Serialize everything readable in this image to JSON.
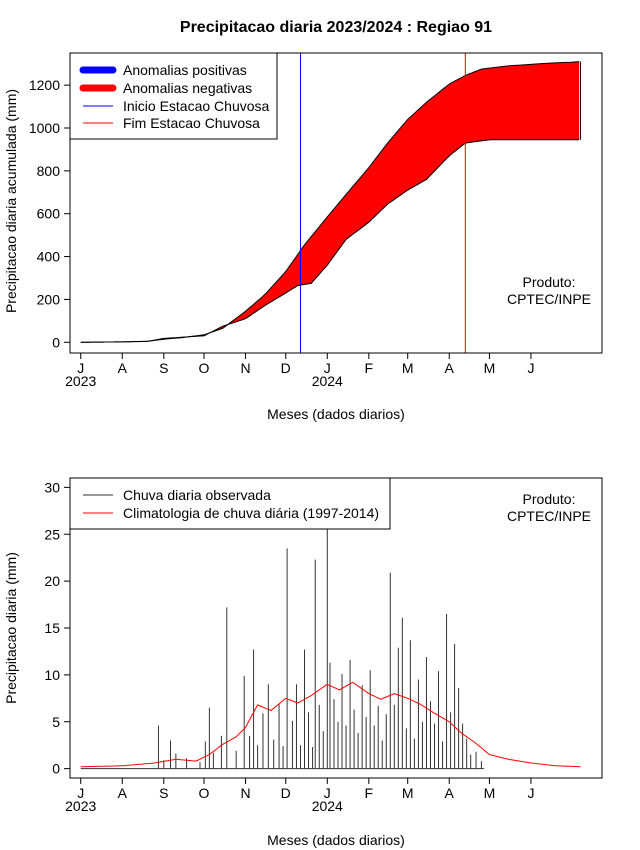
{
  "chart_data": [
    {
      "type": "area",
      "title": "Precipitacao diaria 2023/2024 : Regiao 91",
      "xlabel": "Meses (dados diarios)",
      "ylabel": "Precipitacao diaria acumulada (mm)",
      "ylim": [
        -50,
        1350
      ],
      "yticks": [
        0,
        200,
        400,
        600,
        800,
        1000,
        1200
      ],
      "xlim": [
        "2023-06-23",
        "2024-07-24"
      ],
      "xticks": [
        {
          "date": "2023-07-01",
          "label": "J"
        },
        {
          "date": "2023-08-01",
          "label": "A"
        },
        {
          "date": "2023-09-01",
          "label": "S"
        },
        {
          "date": "2023-10-01",
          "label": "O"
        },
        {
          "date": "2023-11-01",
          "label": "N"
        },
        {
          "date": "2023-12-01",
          "label": "D"
        },
        {
          "date": "2024-01-01",
          "label": "J"
        },
        {
          "date": "2024-02-01",
          "label": "F"
        },
        {
          "date": "2024-03-01",
          "label": "M"
        },
        {
          "date": "2024-04-01",
          "label": "A"
        },
        {
          "date": "2024-05-01",
          "label": "M"
        },
        {
          "date": "2024-06-01",
          "label": "J"
        }
      ],
      "year_labels": [
        {
          "date": "2023-07-01",
          "label": "2023"
        },
        {
          "date": "2024-01-01",
          "label": "2024"
        }
      ],
      "legend_position": "top-left",
      "legend": [
        {
          "label": "Anomalias positivas",
          "color": "#0000ff",
          "kind": "thick-line"
        },
        {
          "label": "Anomalias negativas",
          "color": "#ff0000",
          "kind": "thick-line"
        },
        {
          "label": "Inicio Estacao Chuvosa",
          "color": "#0000ff",
          "kind": "thin-line"
        },
        {
          "label": "Fim Estacao Chuvosa",
          "color": "#ff0000",
          "kind": "thin-line"
        }
      ],
      "annotation": [
        "Produto:",
        "CPTEC/INPE"
      ],
      "rainy_season_start": "2023-12-12",
      "rainy_season_end": "2024-04-13",
      "series": [
        {
          "name": "Climatologia",
          "values": [
            [
              "2023-07-01",
              0
            ],
            [
              "2023-08-01",
              2
            ],
            [
              "2023-08-20",
              5
            ],
            [
              "2023-09-01",
              14
            ],
            [
              "2023-09-15",
              22
            ],
            [
              "2023-10-01",
              35
            ],
            [
              "2023-10-15",
              65
            ],
            [
              "2023-11-01",
              145
            ],
            [
              "2023-11-15",
              220
            ],
            [
              "2023-12-01",
              330
            ],
            [
              "2023-12-15",
              455
            ],
            [
              "2024-01-01",
              585
            ],
            [
              "2024-01-15",
              690
            ],
            [
              "2024-02-01",
              815
            ],
            [
              "2024-02-15",
              930
            ],
            [
              "2024-03-01",
              1040
            ],
            [
              "2024-03-15",
              1120
            ],
            [
              "2024-04-01",
              1205
            ],
            [
              "2024-04-13",
              1245
            ],
            [
              "2024-04-25",
              1275
            ],
            [
              "2024-05-15",
              1290
            ],
            [
              "2024-06-01",
              1297
            ],
            [
              "2024-06-15",
              1303
            ],
            [
              "2024-07-01",
              1307
            ],
            [
              "2024-07-08",
              1310
            ]
          ]
        },
        {
          "name": "Observada",
          "values": [
            [
              "2023-07-01",
              0
            ],
            [
              "2023-08-01",
              2
            ],
            [
              "2023-08-20",
              4
            ],
            [
              "2023-09-01",
              18
            ],
            [
              "2023-09-15",
              24
            ],
            [
              "2023-10-01",
              30
            ],
            [
              "2023-10-15",
              75
            ],
            [
              "2023-11-01",
              110
            ],
            [
              "2023-11-15",
              170
            ],
            [
              "2023-12-01",
              230
            ],
            [
              "2023-12-10",
              265
            ],
            [
              "2023-12-20",
              275
            ],
            [
              "2024-01-01",
              360
            ],
            [
              "2024-01-15",
              480
            ],
            [
              "2024-02-01",
              560
            ],
            [
              "2024-02-15",
              645
            ],
            [
              "2024-03-01",
              710
            ],
            [
              "2024-03-15",
              760
            ],
            [
              "2024-04-01",
              870
            ],
            [
              "2024-04-13",
              930
            ],
            [
              "2024-05-01",
              945
            ],
            [
              "2024-06-01",
              945
            ],
            [
              "2024-07-08",
              945
            ]
          ]
        }
      ]
    },
    {
      "type": "bar",
      "xlabel": "Meses (dados diarios)",
      "ylabel": "Precipitacao diaria (mm)",
      "ylim": [
        -1,
        31
      ],
      "yticks": [
        0,
        5,
        10,
        15,
        20,
        25,
        30
      ],
      "xlim": [
        "2023-06-23",
        "2024-07-24"
      ],
      "xticks": [
        {
          "date": "2023-07-01",
          "label": "J"
        },
        {
          "date": "2023-08-01",
          "label": "A"
        },
        {
          "date": "2023-09-01",
          "label": "S"
        },
        {
          "date": "2023-10-01",
          "label": "O"
        },
        {
          "date": "2023-11-01",
          "label": "N"
        },
        {
          "date": "2023-12-01",
          "label": "D"
        },
        {
          "date": "2024-01-01",
          "label": "J"
        },
        {
          "date": "2024-02-01",
          "label": "F"
        },
        {
          "date": "2024-03-01",
          "label": "M"
        },
        {
          "date": "2024-04-01",
          "label": "A"
        },
        {
          "date": "2024-05-01",
          "label": "M"
        },
        {
          "date": "2024-06-01",
          "label": "J"
        }
      ],
      "year_labels": [
        {
          "date": "2023-07-01",
          "label": "2023"
        },
        {
          "date": "2024-01-01",
          "label": "2024"
        }
      ],
      "legend_position": "top-left",
      "legend": [
        {
          "label": "Chuva diaria observada",
          "color": "#333333"
        },
        {
          "label": "Climatologia de chuva diária (1997-2014)",
          "color": "#ff0000"
        }
      ],
      "annotation": [
        "Produto:",
        "CPTEC/INPE"
      ],
      "series": [
        {
          "name": "Chuva diaria observada",
          "start_date": "2023-07-01",
          "values": [
            0,
            0,
            0,
            0,
            0,
            0,
            0,
            0,
            0,
            0,
            0,
            0,
            0,
            0,
            0,
            0,
            0,
            0,
            0,
            0,
            0,
            0,
            0,
            0,
            0,
            0,
            0,
            0,
            0,
            0,
            0,
            0,
            0,
            0,
            0,
            0,
            0,
            0,
            0,
            0,
            0,
            0,
            0,
            0,
            0,
            0,
            0,
            0,
            0,
            0,
            0,
            0,
            0,
            0,
            0,
            0,
            0,
            0,
            0,
            0,
            0,
            0.3,
            0,
            0,
            0,
            0.1,
            0,
            0.6,
            0,
            0,
            0,
            0,
            0,
            0,
            0,
            0,
            0.2,
            0,
            0,
            0,
            0,
            0,
            0,
            0,
            0,
            0,
            0,
            0,
            0,
            0,
            0,
            0,
            0.5,
            0,
            0,
            0,
            0,
            0,
            0,
            0,
            0,
            0,
            0,
            0,
            0,
            0,
            0,
            0,
            0,
            0,
            0,
            0.4,
            0,
            0,
            0,
            1.3,
            0,
            0,
            0,
            0,
            0,
            0,
            0,
            0,
            0,
            0,
            0,
            0,
            0,
            0,
            0,
            0,
            0,
            0,
            0,
            0,
            0,
            0,
            0,
            0,
            0,
            0,
            0,
            0,
            0,
            0,
            0,
            0,
            0,
            0,
            0,
            0,
            0,
            0,
            0,
            0,
            0,
            0,
            0,
            0,
            0,
            0,
            0,
            0,
            0,
            0,
            0,
            0,
            0,
            0,
            0,
            0,
            0,
            0,
            0,
            0,
            0,
            0,
            0,
            0,
            0,
            0,
            0,
            0,
            0,
            0,
            0,
            0,
            0,
            0,
            0,
            0,
            0,
            0,
            0,
            0,
            0,
            0,
            0,
            0,
            0,
            0,
            0,
            0,
            0,
            0,
            0,
            0,
            0,
            0,
            0,
            0,
            0,
            0,
            0,
            0,
            0,
            0,
            0,
            0,
            0,
            0,
            0,
            0,
            0,
            0,
            0,
            0,
            0,
            0,
            0,
            0,
            0,
            0,
            0,
            0,
            0,
            0,
            0,
            0,
            0,
            0,
            0,
            0,
            0,
            0,
            0,
            0,
            0,
            0,
            0,
            0,
            0,
            0,
            0,
            0,
            0,
            0,
            0,
            0,
            0,
            0,
            0,
            0,
            0,
            0,
            0,
            0,
            0,
            0,
            0,
            0,
            0,
            0,
            0,
            0,
            0,
            0,
            0,
            0,
            0,
            0,
            0,
            0,
            0,
            0,
            0,
            0,
            0,
            0,
            0,
            0,
            0,
            0,
            0,
            0,
            0,
            0,
            0,
            0,
            0,
            0,
            0,
            0,
            0,
            0,
            0,
            0,
            0,
            0,
            0,
            0,
            0,
            0,
            0,
            0,
            0,
            0,
            0,
            0,
            0,
            0,
            0,
            0,
            0,
            0,
            0,
            0,
            0,
            0,
            0,
            0,
            0,
            0,
            0,
            0,
            0,
            0,
            0,
            0,
            0,
            0,
            0,
            0,
            0,
            0,
            0,
            0,
            0,
            0,
            0,
            0,
            0,
            0,
            0,
            0,
            0,
            0,
            0,
            0,
            0,
            0,
            0,
            0,
            0,
            0,
            0,
            0,
            0,
            0,
            0,
            0,
            0,
            0,
            0,
            0,
            0,
            0,
            0
          ]
        },
        {
          "name": "Climatologia de chuva diária (1997-2014)",
          "start_date": "2023-07-01",
          "values": []
        }
      ],
      "observed_peaks": [
        [
          "2023-08-28",
          4.6
        ],
        [
          "2023-09-01",
          0.9
        ],
        [
          "2023-09-06",
          3.0
        ],
        [
          "2023-09-10",
          1.6
        ],
        [
          "2023-09-18",
          1.1
        ],
        [
          "2023-09-28",
          0.7
        ],
        [
          "2023-10-02",
          2.9
        ],
        [
          "2023-10-05",
          6.5
        ],
        [
          "2023-10-08",
          1.7
        ],
        [
          "2023-10-14",
          3.5
        ],
        [
          "2023-10-18",
          17.2
        ],
        [
          "2023-10-25",
          1.9
        ],
        [
          "2023-10-31",
          9.9
        ],
        [
          "2023-11-04",
          3.5
        ],
        [
          "2023-11-07",
          12.7
        ],
        [
          "2023-11-10",
          2.5
        ],
        [
          "2023-11-14",
          5.9
        ],
        [
          "2023-11-18",
          9.0
        ],
        [
          "2023-11-22",
          3.1
        ],
        [
          "2023-11-26",
          6.9
        ],
        [
          "2023-11-29",
          2.4
        ],
        [
          "2023-12-02",
          23.5
        ],
        [
          "2023-12-06",
          5.1
        ],
        [
          "2023-12-09",
          9.0
        ],
        [
          "2023-12-12",
          2.5
        ],
        [
          "2023-12-15",
          12.7
        ],
        [
          "2023-12-18",
          6.0
        ],
        [
          "2023-12-21",
          2.3
        ],
        [
          "2023-12-23",
          22.3
        ],
        [
          "2023-12-26",
          6.8
        ],
        [
          "2023-12-29",
          4.0
        ],
        [
          "2024-01-01",
          27.0
        ],
        [
          "2024-01-03",
          11.3
        ],
        [
          "2024-01-06",
          7.4
        ],
        [
          "2024-01-09",
          5.0
        ],
        [
          "2024-01-12",
          10.1
        ],
        [
          "2024-01-15",
          4.6
        ],
        [
          "2024-01-18",
          11.6
        ],
        [
          "2024-01-21",
          6.3
        ],
        [
          "2024-01-24",
          3.8
        ],
        [
          "2024-01-27",
          8.9
        ],
        [
          "2024-01-30",
          5.5
        ],
        [
          "2024-02-02",
          10.5
        ],
        [
          "2024-02-05",
          4.6
        ],
        [
          "2024-02-08",
          6.7
        ],
        [
          "2024-02-11",
          3.0
        ],
        [
          "2024-02-14",
          5.8
        ],
        [
          "2024-02-17",
          20.9
        ],
        [
          "2024-02-20",
          6.8
        ],
        [
          "2024-02-23",
          12.9
        ],
        [
          "2024-02-26",
          16.1
        ],
        [
          "2024-02-29",
          4.3
        ],
        [
          "2024-03-03",
          13.7
        ],
        [
          "2024-03-06",
          3.2
        ],
        [
          "2024-03-09",
          9.5
        ],
        [
          "2024-03-12",
          5.0
        ],
        [
          "2024-03-15",
          11.9
        ],
        [
          "2024-03-18",
          7.2
        ],
        [
          "2024-03-21",
          4.8
        ],
        [
          "2024-03-24",
          10.4
        ],
        [
          "2024-03-27",
          2.9
        ],
        [
          "2024-03-30",
          16.5
        ],
        [
          "2024-04-02",
          6.0
        ],
        [
          "2024-04-05",
          13.3
        ],
        [
          "2024-04-08",
          8.6
        ],
        [
          "2024-04-11",
          4.8
        ],
        [
          "2024-04-14",
          3.2
        ],
        [
          "2024-04-17",
          1.5
        ],
        [
          "2024-04-21",
          1.8
        ],
        [
          "2024-04-25",
          0.8
        ]
      ],
      "climatology_anchors": [
        [
          "2023-07-01",
          0.2
        ],
        [
          "2023-08-01",
          0.3
        ],
        [
          "2023-08-25",
          0.6
        ],
        [
          "2023-09-10",
          1.0
        ],
        [
          "2023-09-25",
          0.8
        ],
        [
          "2023-10-05",
          1.5
        ],
        [
          "2023-10-15",
          2.6
        ],
        [
          "2023-10-25",
          3.4
        ],
        [
          "2023-11-01",
          4.4
        ],
        [
          "2023-11-10",
          6.8
        ],
        [
          "2023-11-20",
          6.2
        ],
        [
          "2023-12-01",
          7.5
        ],
        [
          "2023-12-10",
          7.0
        ],
        [
          "2023-12-20",
          7.8
        ],
        [
          "2024-01-01",
          9.0
        ],
        [
          "2024-01-10",
          8.4
        ],
        [
          "2024-01-20",
          9.2
        ],
        [
          "2024-02-01",
          8.0
        ],
        [
          "2024-02-10",
          7.4
        ],
        [
          "2024-02-20",
          8.0
        ],
        [
          "2024-03-01",
          7.5
        ],
        [
          "2024-03-10",
          6.9
        ],
        [
          "2024-03-20",
          6.0
        ],
        [
          "2024-04-01",
          5.0
        ],
        [
          "2024-04-10",
          3.8
        ],
        [
          "2024-04-20",
          2.8
        ],
        [
          "2024-05-01",
          1.5
        ],
        [
          "2024-05-15",
          1.0
        ],
        [
          "2024-06-01",
          0.6
        ],
        [
          "2024-06-20",
          0.3
        ],
        [
          "2024-07-08",
          0.2
        ]
      ]
    }
  ]
}
